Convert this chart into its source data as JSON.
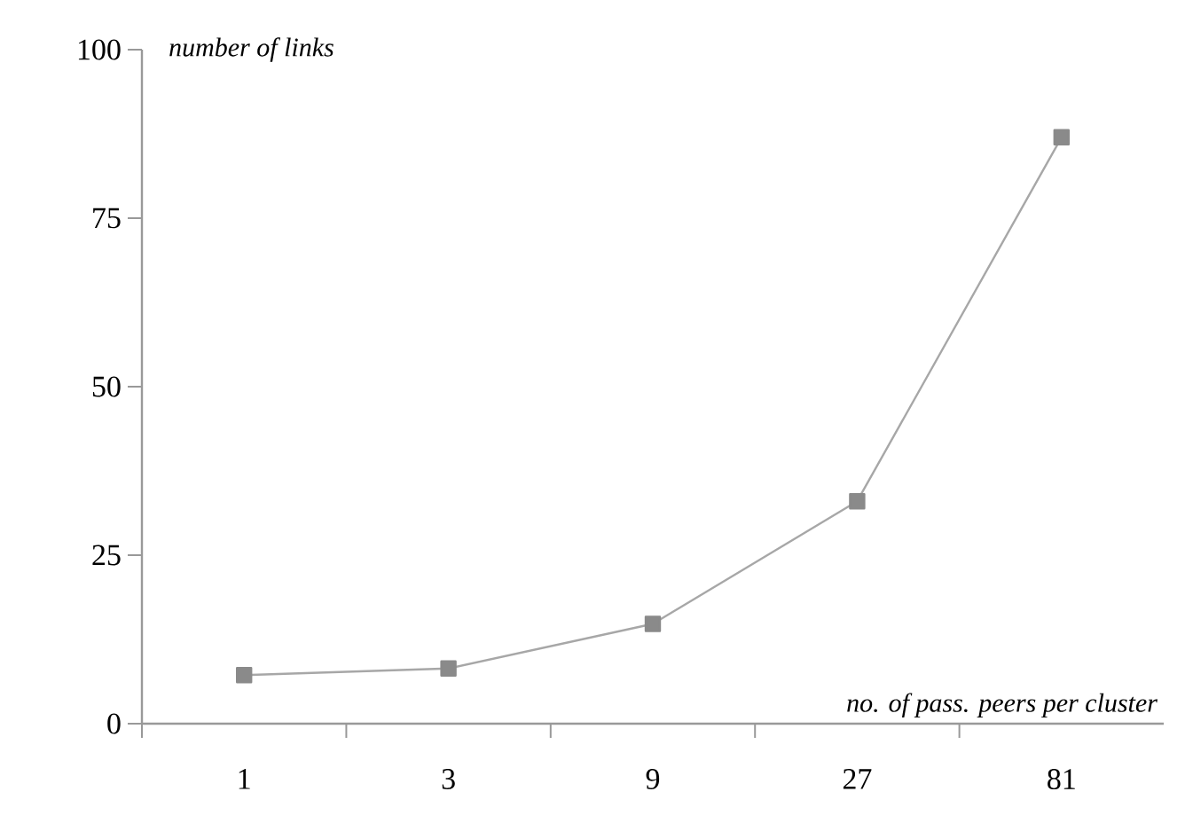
{
  "chart_data": {
    "type": "line",
    "xlabel": "no. of pass. peers per cluster",
    "ylabel": "number of links",
    "categories": [
      "1",
      "3",
      "9",
      "27",
      "81"
    ],
    "series": [
      {
        "color": "#8a8a8a",
        "values": [
          7.2,
          8.2,
          14.8,
          33,
          87
        ]
      }
    ],
    "ylim": [
      0,
      100
    ],
    "yticks": [
      0,
      25,
      50,
      75,
      100
    ],
    "marker": "square",
    "line_style": "solid",
    "grid": false
  }
}
